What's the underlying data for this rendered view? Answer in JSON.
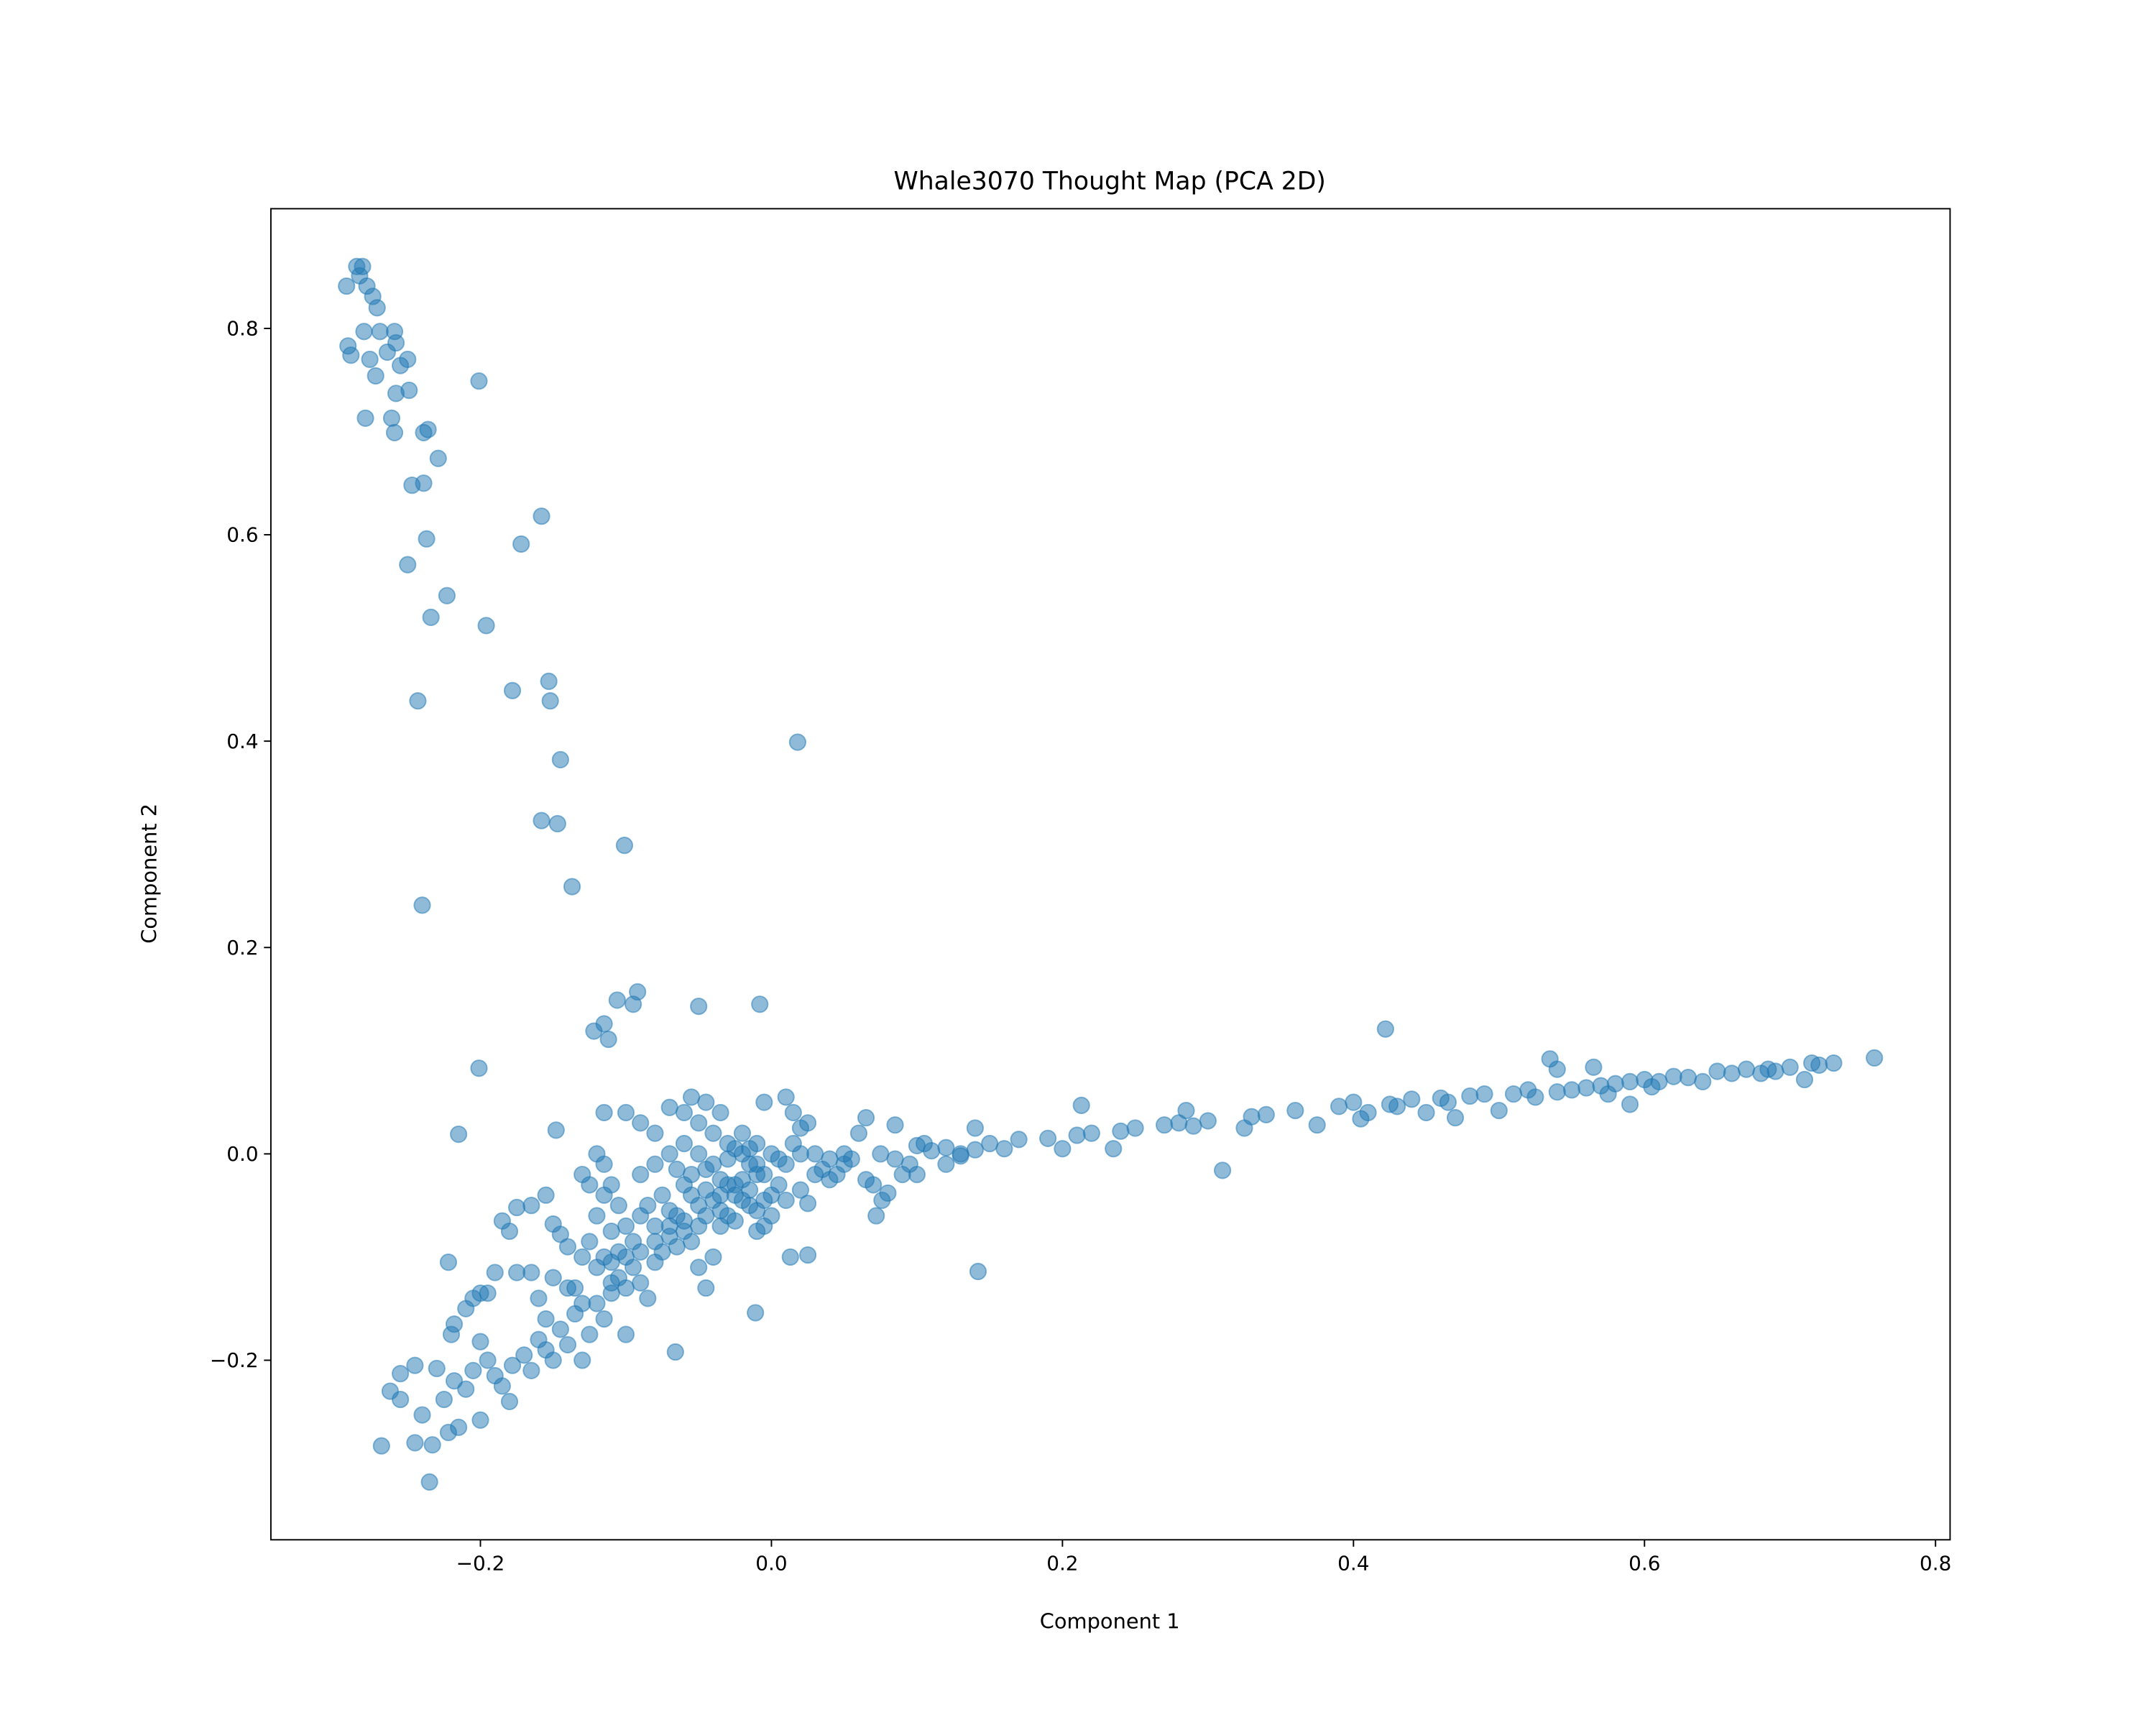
{
  "chart_data": {
    "type": "scatter",
    "title": "Whale3070 Thought Map (PCA 2D)",
    "xlabel": "Component 1",
    "ylabel": "Component 2",
    "xlim": [
      -0.344,
      0.81
    ],
    "ylim": [
      -0.374,
      0.916
    ],
    "xticks": [
      -0.2,
      0.0,
      0.2,
      0.4,
      0.6,
      0.8
    ],
    "xtick_labels": [
      "−0.2",
      "0.0",
      "0.2",
      "0.4",
      "0.6",
      "0.8"
    ],
    "yticks": [
      -0.2,
      0.0,
      0.2,
      0.4,
      0.6,
      0.8
    ],
    "ytick_labels": [
      "−0.2",
      "0.0",
      "0.2",
      "0.4",
      "0.6",
      "0.8"
    ],
    "grid": false,
    "legend": "none",
    "marker_color": "#1f77b4",
    "marker_alpha": 0.5,
    "points": [
      [
        -0.285,
        0.86
      ],
      [
        -0.281,
        0.86
      ],
      [
        -0.292,
        0.841
      ],
      [
        -0.278,
        0.841
      ],
      [
        -0.283,
        0.851
      ],
      [
        -0.274,
        0.831
      ],
      [
        -0.28,
        0.797
      ],
      [
        -0.269,
        0.797
      ],
      [
        -0.259,
        0.797
      ],
      [
        -0.271,
        0.82
      ],
      [
        -0.291,
        0.783
      ],
      [
        -0.289,
        0.774
      ],
      [
        -0.276,
        0.77
      ],
      [
        -0.264,
        0.777
      ],
      [
        -0.272,
        0.754
      ],
      [
        -0.258,
        0.786
      ],
      [
        -0.255,
        0.764
      ],
      [
        -0.25,
        0.77
      ],
      [
        -0.258,
        0.737
      ],
      [
        -0.249,
        0.74
      ],
      [
        -0.279,
        0.713
      ],
      [
        -0.261,
        0.713
      ],
      [
        -0.259,
        0.699
      ],
      [
        -0.239,
        0.699
      ],
      [
        -0.236,
        0.702
      ],
      [
        -0.229,
        0.674
      ],
      [
        -0.247,
        0.648
      ],
      [
        -0.239,
        0.65
      ],
      [
        -0.201,
        0.749
      ],
      [
        -0.237,
        0.596
      ],
      [
        -0.25,
        0.571
      ],
      [
        -0.158,
        0.618
      ],
      [
        -0.172,
        0.591
      ],
      [
        -0.223,
        0.541
      ],
      [
        -0.234,
        0.52
      ],
      [
        -0.196,
        0.512
      ],
      [
        -0.178,
        0.449
      ],
      [
        -0.153,
        0.458
      ],
      [
        -0.152,
        0.439
      ],
      [
        -0.243,
        0.439
      ],
      [
        -0.145,
        0.382
      ],
      [
        0.018,
        0.399
      ],
      [
        -0.158,
        0.323
      ],
      [
        -0.147,
        0.32
      ],
      [
        -0.101,
        0.299
      ],
      [
        -0.137,
        0.259
      ],
      [
        -0.24,
        0.241
      ],
      [
        -0.092,
        0.157
      ],
      [
        -0.106,
        0.149
      ],
      [
        -0.095,
        0.145
      ],
      [
        -0.05,
        0.143
      ],
      [
        -0.008,
        0.145
      ],
      [
        -0.115,
        0.126
      ],
      [
        -0.122,
        0.119
      ],
      [
        -0.112,
        0.111
      ],
      [
        -0.201,
        0.083
      ],
      [
        0.422,
        0.121
      ],
      [
        -0.215,
        0.019
      ],
      [
        -0.148,
        0.023
      ],
      [
        0.31,
        -0.016
      ],
      [
        0.142,
        -0.114
      ],
      [
        -0.066,
        -0.192
      ],
      [
        -0.011,
        -0.154
      ],
      [
        0.013,
        -0.1
      ],
      [
        0.025,
        -0.098
      ],
      [
        0.1,
        0.008
      ],
      [
        0.11,
        0.003
      ],
      [
        0.12,
        0.006
      ],
      [
        0.13,
        -0.002
      ],
      [
        0.14,
        0.004
      ],
      [
        0.15,
        0.01
      ],
      [
        0.16,
        0.005
      ],
      [
        0.17,
        0.014
      ],
      [
        0.19,
        0.015
      ],
      [
        0.2,
        0.005
      ],
      [
        0.21,
        0.018
      ],
      [
        0.213,
        0.047
      ],
      [
        0.22,
        0.02
      ],
      [
        0.235,
        0.005
      ],
      [
        0.24,
        0.022
      ],
      [
        0.25,
        0.025
      ],
      [
        0.27,
        0.028
      ],
      [
        0.28,
        0.03
      ],
      [
        0.285,
        0.042
      ],
      [
        0.29,
        0.027
      ],
      [
        0.3,
        0.032
      ],
      [
        0.325,
        0.025
      ],
      [
        0.33,
        0.036
      ],
      [
        0.34,
        0.038
      ],
      [
        0.36,
        0.042
      ],
      [
        0.375,
        0.028
      ],
      [
        0.39,
        0.046
      ],
      [
        0.4,
        0.05
      ],
      [
        0.41,
        0.04
      ],
      [
        0.43,
        0.046
      ],
      [
        0.44,
        0.053
      ],
      [
        0.45,
        0.04
      ],
      [
        0.46,
        0.054
      ],
      [
        0.47,
        0.035
      ],
      [
        0.48,
        0.056
      ],
      [
        0.49,
        0.058
      ],
      [
        0.5,
        0.042
      ],
      [
        0.51,
        0.058
      ],
      [
        0.52,
        0.062
      ],
      [
        0.535,
        0.092
      ],
      [
        0.54,
        0.082
      ],
      [
        0.54,
        0.06
      ],
      [
        0.55,
        0.062
      ],
      [
        0.56,
        0.064
      ],
      [
        0.565,
        0.084
      ],
      [
        0.57,
        0.066
      ],
      [
        0.58,
        0.068
      ],
      [
        0.59,
        0.048
      ],
      [
        0.59,
        0.07
      ],
      [
        0.6,
        0.072
      ],
      [
        0.61,
        0.07
      ],
      [
        0.62,
        0.075
      ],
      [
        0.63,
        0.074
      ],
      [
        0.64,
        0.07
      ],
      [
        0.65,
        0.08
      ],
      [
        0.66,
        0.078
      ],
      [
        0.67,
        0.082
      ],
      [
        0.68,
        0.078
      ],
      [
        0.69,
        0.08
      ],
      [
        0.7,
        0.084
      ],
      [
        0.71,
        0.072
      ],
      [
        0.715,
        0.088
      ],
      [
        0.72,
        0.086
      ],
      [
        0.73,
        0.088
      ],
      [
        0.758,
        0.093
      ],
      [
        0.405,
        0.034
      ],
      [
        0.425,
        0.048
      ],
      [
        0.465,
        0.05
      ],
      [
        0.525,
        0.055
      ],
      [
        0.575,
        0.058
      ],
      [
        0.605,
        0.065
      ],
      [
        0.685,
        0.082
      ],
      [
        -0.268,
        -0.283
      ],
      [
        -0.235,
        -0.318
      ],
      [
        -0.245,
        -0.28
      ],
      [
        -0.233,
        -0.282
      ],
      [
        -0.24,
        -0.253
      ],
      [
        -0.222,
        -0.27
      ],
      [
        -0.215,
        -0.265
      ],
      [
        -0.2,
        -0.258
      ],
      [
        -0.262,
        -0.23
      ],
      [
        -0.255,
        -0.213
      ],
      [
        -0.245,
        -0.205
      ],
      [
        -0.255,
        -0.238
      ],
      [
        -0.23,
        -0.208
      ],
      [
        -0.225,
        -0.238
      ],
      [
        -0.218,
        -0.22
      ],
      [
        -0.21,
        -0.228
      ],
      [
        -0.205,
        -0.21
      ],
      [
        -0.2,
        -0.182
      ],
      [
        -0.195,
        -0.2
      ],
      [
        -0.19,
        -0.215
      ],
      [
        -0.185,
        -0.225
      ],
      [
        -0.18,
        -0.24
      ],
      [
        -0.178,
        -0.205
      ],
      [
        -0.17,
        -0.195
      ],
      [
        -0.165,
        -0.21
      ],
      [
        -0.16,
        -0.18
      ],
      [
        -0.155,
        -0.19
      ],
      [
        -0.15,
        -0.2
      ],
      [
        -0.145,
        -0.17
      ],
      [
        -0.14,
        -0.185
      ],
      [
        -0.135,
        -0.155
      ],
      [
        -0.13,
        -0.2
      ],
      [
        -0.125,
        -0.175
      ],
      [
        -0.12,
        -0.145
      ],
      [
        -0.115,
        -0.16
      ],
      [
        -0.11,
        -0.135
      ],
      [
        -0.105,
        -0.12
      ],
      [
        -0.1,
        -0.13
      ],
      [
        -0.22,
        -0.175
      ],
      [
        -0.218,
        -0.165
      ],
      [
        -0.21,
        -0.15
      ],
      [
        -0.205,
        -0.14
      ],
      [
        -0.2,
        -0.135
      ],
      [
        -0.195,
        -0.135
      ],
      [
        -0.19,
        -0.115
      ],
      [
        -0.175,
        -0.115
      ],
      [
        -0.165,
        -0.115
      ],
      [
        -0.222,
        -0.105
      ],
      [
        -0.185,
        -0.065
      ],
      [
        -0.18,
        -0.075
      ],
      [
        -0.175,
        -0.052
      ],
      [
        -0.165,
        -0.05
      ],
      [
        -0.155,
        -0.04
      ],
      [
        -0.15,
        -0.068
      ],
      [
        -0.145,
        -0.078
      ],
      [
        -0.14,
        -0.09
      ],
      [
        -0.13,
        -0.1
      ],
      [
        -0.125,
        -0.085
      ],
      [
        -0.12,
        -0.06
      ],
      [
        -0.115,
        -0.04
      ],
      [
        -0.11,
        -0.075
      ],
      [
        -0.105,
        -0.095
      ],
      [
        -0.16,
        -0.14
      ],
      [
        -0.155,
        -0.16
      ],
      [
        -0.15,
        -0.12
      ],
      [
        -0.14,
        -0.13
      ],
      [
        -0.135,
        -0.13
      ],
      [
        -0.13,
        -0.145
      ],
      [
        -0.12,
        -0.11
      ],
      [
        -0.115,
        -0.1
      ],
      [
        -0.11,
        -0.125
      ],
      [
        -0.1,
        -0.175
      ],
      [
        -0.095,
        -0.11
      ],
      [
        -0.09,
        -0.125
      ],
      [
        -0.085,
        -0.14
      ],
      [
        -0.08,
        -0.105
      ],
      [
        -0.075,
        -0.095
      ],
      [
        -0.07,
        -0.08
      ],
      [
        -0.065,
        -0.09
      ],
      [
        -0.06,
        -0.075
      ],
      [
        -0.055,
        -0.085
      ],
      [
        -0.05,
        -0.11
      ],
      [
        -0.045,
        -0.13
      ],
      [
        -0.04,
        -0.1
      ],
      [
        -0.035,
        -0.07
      ],
      [
        -0.03,
        -0.06
      ],
      [
        -0.025,
        -0.065
      ],
      [
        -0.02,
        -0.045
      ],
      [
        -0.015,
        -0.05
      ],
      [
        -0.01,
        -0.075
      ],
      [
        -0.005,
        -0.07
      ],
      [
        0.0,
        -0.04
      ],
      [
        0.005,
        -0.03
      ],
      [
        0.01,
        -0.045
      ],
      [
        0.02,
        -0.035
      ],
      [
        0.025,
        -0.048
      ],
      [
        0.03,
        -0.02
      ],
      [
        0.035,
        -0.015
      ],
      [
        0.04,
        -0.025
      ],
      [
        0.045,
        -0.02
      ],
      [
        0.05,
        -0.01
      ],
      [
        0.06,
        0.02
      ],
      [
        0.065,
        0.035
      ],
      [
        0.07,
        -0.03
      ],
      [
        0.072,
        -0.06
      ],
      [
        0.076,
        -0.045
      ],
      [
        0.08,
        -0.038
      ],
      [
        0.085,
        0.028
      ],
      [
        0.09,
        -0.02
      ],
      [
        0.095,
        -0.01
      ],
      [
        0.055,
        -0.005
      ],
      [
        0.065,
        -0.025
      ],
      [
        0.075,
        0.0
      ],
      [
        0.085,
        -0.005
      ],
      [
        0.1,
        -0.02
      ],
      [
        0.105,
        0.01
      ],
      [
        0.12,
        -0.01
      ],
      [
        0.13,
        0.0
      ],
      [
        0.14,
        0.025
      ],
      [
        -0.1,
        0.04
      ],
      [
        -0.115,
        0.04
      ],
      [
        -0.09,
        0.03
      ],
      [
        -0.08,
        0.02
      ],
      [
        -0.07,
        0.045
      ],
      [
        -0.06,
        0.04
      ],
      [
        -0.055,
        0.055
      ],
      [
        -0.05,
        0.03
      ],
      [
        -0.045,
        0.05
      ],
      [
        -0.04,
        0.02
      ],
      [
        -0.035,
        0.04
      ],
      [
        -0.03,
        0.01
      ],
      [
        -0.025,
        0.005
      ],
      [
        -0.02,
        0.0
      ],
      [
        -0.015,
        0.005
      ],
      [
        -0.01,
        -0.01
      ],
      [
        -0.005,
        0.05
      ],
      [
        0.01,
        0.055
      ],
      [
        0.015,
        0.04
      ],
      [
        0.02,
        0.025
      ],
      [
        0.025,
        0.03
      ],
      [
        0.015,
        0.01
      ],
      [
        0.005,
        -0.005
      ],
      [
        -0.005,
        -0.02
      ],
      [
        -0.01,
        -0.02
      ],
      [
        -0.015,
        -0.01
      ],
      [
        -0.02,
        -0.025
      ],
      [
        -0.025,
        -0.03
      ],
      [
        -0.03,
        -0.03
      ],
      [
        -0.035,
        -0.04
      ],
      [
        -0.04,
        -0.045
      ],
      [
        -0.045,
        -0.035
      ],
      [
        -0.05,
        -0.05
      ],
      [
        -0.055,
        -0.04
      ],
      [
        -0.06,
        -0.03
      ],
      [
        -0.065,
        -0.06
      ],
      [
        -0.07,
        -0.055
      ],
      [
        -0.075,
        -0.04
      ],
      [
        -0.08,
        -0.07
      ],
      [
        -0.085,
        -0.05
      ],
      [
        -0.09,
        -0.06
      ],
      [
        -0.095,
        -0.085
      ],
      [
        -0.1,
        -0.07
      ],
      [
        -0.105,
        -0.05
      ],
      [
        -0.11,
        -0.03
      ],
      [
        -0.115,
        -0.01
      ],
      [
        -0.12,
        0.0
      ],
      [
        -0.125,
        -0.03
      ],
      [
        -0.13,
        -0.02
      ],
      [
        -0.09,
        -0.02
      ],
      [
        -0.08,
        -0.01
      ],
      [
        -0.07,
        0.0
      ],
      [
        -0.06,
        0.01
      ],
      [
        -0.05,
        0.0
      ],
      [
        -0.04,
        -0.01
      ],
      [
        -0.03,
        -0.005
      ],
      [
        -0.02,
        0.02
      ],
      [
        -0.01,
        0.01
      ],
      [
        0.0,
        0.0
      ],
      [
        0.01,
        -0.01
      ],
      [
        0.02,
        0.0
      ],
      [
        0.03,
        0.0
      ],
      [
        0.04,
        -0.005
      ],
      [
        0.05,
        0.0
      ],
      [
        -0.065,
        -0.015
      ],
      [
        -0.055,
        -0.02
      ],
      [
        -0.045,
        -0.015
      ],
      [
        -0.035,
        -0.025
      ],
      [
        -0.025,
        -0.04
      ],
      [
        -0.015,
        -0.035
      ],
      [
        -0.005,
        -0.045
      ],
      [
        0.0,
        -0.06
      ],
      [
        -0.01,
        -0.055
      ],
      [
        -0.05,
        -0.07
      ],
      [
        -0.06,
        -0.065
      ],
      [
        -0.07,
        -0.07
      ],
      [
        -0.08,
        -0.085
      ],
      [
        -0.09,
        -0.095
      ],
      [
        -0.1,
        -0.1
      ],
      [
        -0.11,
        -0.105
      ],
      [
        -0.035,
        -0.055
      ],
      [
        -0.045,
        -0.06
      ]
    ]
  }
}
